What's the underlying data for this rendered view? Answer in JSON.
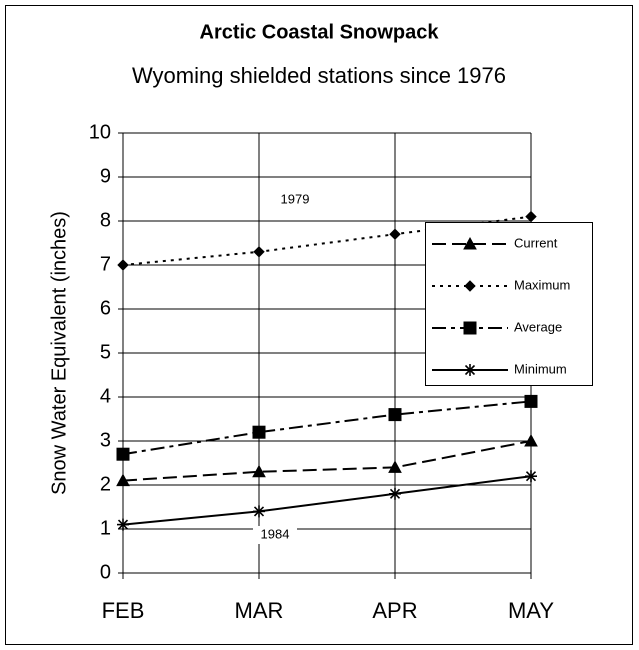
{
  "chart_data": {
    "type": "line",
    "title": "Arctic Coastal Snowpack",
    "subtitle": "Wyoming shielded stations since 1976",
    "y_label": "Snow Water Equivalent (inches)",
    "categories": [
      "FEB",
      "MAR",
      "APR",
      "MAY"
    ],
    "series": [
      {
        "name": "Current",
        "color": "#000000",
        "dash": "dashed",
        "marker": "triangle",
        "values": [
          2.1,
          2.3,
          2.4,
          3.0
        ]
      },
      {
        "name": "Maximum",
        "color": "#000000",
        "dash": "dotted",
        "marker": "diamond",
        "values": [
          7.0,
          7.3,
          7.7,
          8.1
        ]
      },
      {
        "name": "Average",
        "color": "#000000",
        "dash": "dashdot",
        "marker": "square",
        "values": [
          2.7,
          3.2,
          3.6,
          3.9
        ]
      },
      {
        "name": "Minimum",
        "color": "#000000",
        "dash": "solid",
        "marker": "asterisk",
        "values": [
          1.1,
          1.4,
          1.8,
          2.2
        ]
      }
    ],
    "annotations": [
      "1979",
      "1984"
    ],
    "ylim": [
      0,
      10
    ],
    "yticks": [
      0,
      1,
      2,
      3,
      4,
      5,
      6,
      7,
      8,
      9,
      10
    ],
    "grid": true,
    "legend": "right"
  }
}
